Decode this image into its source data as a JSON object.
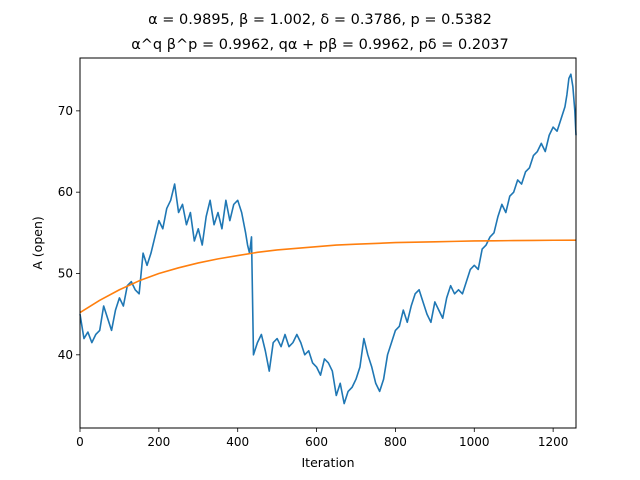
{
  "chart_data": {
    "type": "line",
    "title": "α = 0.9895, β = 1.002, δ = 0.3786, p = 0.5382",
    "subtitle": "α^q β^p = 0.9962, qα + pβ = 0.9962, pδ = 0.2037",
    "xlabel": "Iteration",
    "ylabel": "A (open)",
    "xlim": [
      0,
      1258
    ],
    "ylim": [
      31,
      76.5
    ],
    "xticks": [
      0,
      200,
      400,
      600,
      800,
      1000,
      1200
    ],
    "yticks": [
      40,
      50,
      60,
      70
    ],
    "grid": false,
    "series": [
      {
        "color": "#1f77b4",
        "x": [
          0,
          5,
          10,
          20,
          30,
          40,
          50,
          60,
          70,
          80,
          90,
          100,
          110,
          120,
          130,
          140,
          150,
          155,
          160,
          170,
          180,
          190,
          200,
          210,
          220,
          230,
          240,
          250,
          260,
          270,
          280,
          290,
          300,
          310,
          320,
          330,
          340,
          350,
          360,
          370,
          380,
          390,
          400,
          410,
          420,
          425,
          430,
          435,
          440,
          450,
          460,
          470,
          480,
          490,
          500,
          510,
          520,
          530,
          540,
          550,
          560,
          570,
          580,
          590,
          600,
          610,
          620,
          630,
          640,
          650,
          660,
          670,
          680,
          690,
          700,
          710,
          720,
          730,
          740,
          750,
          760,
          770,
          780,
          790,
          800,
          810,
          820,
          830,
          840,
          850,
          860,
          870,
          880,
          890,
          900,
          910,
          920,
          930,
          940,
          950,
          960,
          970,
          980,
          990,
          1000,
          1010,
          1020,
          1030,
          1040,
          1050,
          1060,
          1070,
          1080,
          1090,
          1100,
          1110,
          1120,
          1130,
          1140,
          1150,
          1160,
          1170,
          1180,
          1190,
          1200,
          1210,
          1220,
          1230,
          1235,
          1240,
          1245,
          1250,
          1255,
          1258
        ],
        "values": [
          45.0,
          43.5,
          42.0,
          42.8,
          41.5,
          42.5,
          43.0,
          46.0,
          44.5,
          43.0,
          45.5,
          47.0,
          46.0,
          48.5,
          49.0,
          48.0,
          47.5,
          50.0,
          52.5,
          51.0,
          52.5,
          54.5,
          56.5,
          55.5,
          58.0,
          59.0,
          61.0,
          57.5,
          58.5,
          56.0,
          57.5,
          54.0,
          55.5,
          53.5,
          57.0,
          59.0,
          56.0,
          57.5,
          55.5,
          59.0,
          56.5,
          58.5,
          59.0,
          57.5,
          55.0,
          53.5,
          52.5,
          54.5,
          40.0,
          41.5,
          42.5,
          40.5,
          38.0,
          41.5,
          42.0,
          41.0,
          42.5,
          41.0,
          41.5,
          42.5,
          41.5,
          40.0,
          40.5,
          39.0,
          38.5,
          37.5,
          39.5,
          39.0,
          38.0,
          35.0,
          36.5,
          34.0,
          35.5,
          36.0,
          37.0,
          38.5,
          42.0,
          40.0,
          38.5,
          36.5,
          35.5,
          37.0,
          40.0,
          41.5,
          43.0,
          43.5,
          45.5,
          44.0,
          46.0,
          47.5,
          48.0,
          46.5,
          45.0,
          44.0,
          46.5,
          45.5,
          44.5,
          47.0,
          48.5,
          47.5,
          48.0,
          47.5,
          49.0,
          50.5,
          51.0,
          50.5,
          53.0,
          53.5,
          54.5,
          55.0,
          57.0,
          58.5,
          57.5,
          59.5,
          60.0,
          61.5,
          61.0,
          62.5,
          63.0,
          64.5,
          65.0,
          66.0,
          65.0,
          67.0,
          68.0,
          67.5,
          69.0,
          70.5,
          72.0,
          74.0,
          74.5,
          73.0,
          70.0,
          67.0
        ]
      },
      {
        "color": "#ff7f0e",
        "x": [
          0,
          50,
          100,
          150,
          200,
          250,
          300,
          350,
          400,
          450,
          500,
          550,
          600,
          650,
          700,
          750,
          800,
          850,
          900,
          950,
          1000,
          1050,
          1100,
          1150,
          1200,
          1258
        ],
        "values": [
          45.2,
          46.7,
          48.0,
          49.1,
          50.0,
          50.7,
          51.3,
          51.8,
          52.2,
          52.6,
          52.9,
          53.1,
          53.3,
          53.5,
          53.6,
          53.7,
          53.8,
          53.85,
          53.9,
          53.95,
          54.0,
          54.02,
          54.05,
          54.07,
          54.09,
          54.1
        ]
      }
    ]
  }
}
